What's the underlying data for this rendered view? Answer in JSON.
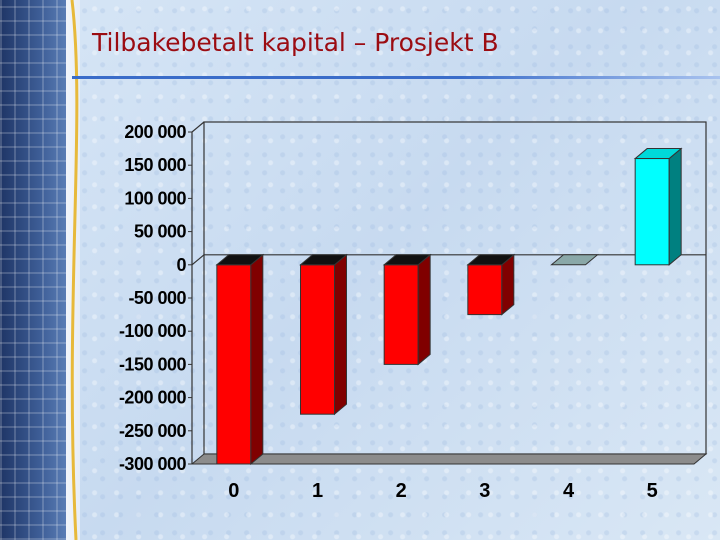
{
  "slide": {
    "title": "Tilbakebetalt kapital – Prosjekt B"
  },
  "colors": {
    "title": "#9b0c12",
    "negative_bar": "#ff0000",
    "positive_bar": "#00ffff",
    "zero_bar": "#8aa8a8"
  },
  "chart_data": {
    "type": "bar",
    "title": "",
    "xlabel": "",
    "ylabel": "",
    "categories": [
      "0",
      "1",
      "2",
      "3",
      "4",
      "5"
    ],
    "values": [
      -300000,
      -225000,
      -150000,
      -75000,
      0,
      160000
    ],
    "ylim": [
      -300000,
      200000
    ],
    "yticks": [
      200000,
      150000,
      100000,
      50000,
      0,
      -50000,
      -100000,
      -150000,
      -200000,
      -250000,
      -300000
    ],
    "ytick_labels": [
      "200 000",
      "150 000",
      "100 000",
      "50 000",
      "0",
      "-50 000",
      "-100 000",
      "-150 000",
      "-200 000",
      "-250 000",
      "-300 000"
    ],
    "grid": false,
    "legend": "none",
    "three_d": true
  }
}
